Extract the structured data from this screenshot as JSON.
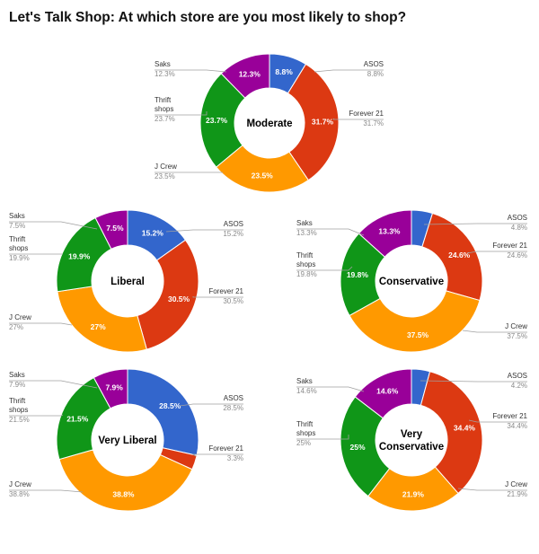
{
  "title": "Let's Talk Shop: At which store are you most likely to shop?",
  "colors": {
    "ASOS": "#3366cc",
    "Forever 21": "#dc3912",
    "J Crew": "#ff9900",
    "Thrift shops": "#109618",
    "Saks": "#990099"
  },
  "chart_data": [
    {
      "type": "pie",
      "donut": true,
      "center_label": "Moderate",
      "center_lines": [
        "Moderate"
      ],
      "slices": [
        {
          "name": "ASOS",
          "value": 8.8,
          "label": "8.8%"
        },
        {
          "name": "Forever 21",
          "value": 31.7,
          "label": "31.7%"
        },
        {
          "name": "J Crew",
          "value": 23.5,
          "label": "23.5%"
        },
        {
          "name": "Thrift shops",
          "value": 23.7,
          "label": "23.7%"
        },
        {
          "name": "Saks",
          "value": 12.3,
          "label": "12.3%"
        }
      ],
      "legend": [
        {
          "name": "ASOS",
          "value": "8.8%"
        },
        {
          "name": "Forever 21",
          "value": "31.7%"
        },
        {
          "name": "J Crew",
          "value": "23.5%"
        },
        {
          "name": "Thrift shops",
          "value": "23.7%"
        },
        {
          "name": "Saks",
          "value": "12.3%"
        }
      ]
    },
    {
      "type": "pie",
      "donut": true,
      "center_label": "Liberal",
      "center_lines": [
        "Liberal"
      ],
      "slices": [
        {
          "name": "ASOS",
          "value": 15.2,
          "label": "15.2%"
        },
        {
          "name": "Forever 21",
          "value": 30.5,
          "label": "30.5%"
        },
        {
          "name": "J Crew",
          "value": 27,
          "label": "27%"
        },
        {
          "name": "Thrift shops",
          "value": 19.9,
          "label": "19.9%"
        },
        {
          "name": "Saks",
          "value": 7.5,
          "label": "7.5%"
        }
      ],
      "legend": [
        {
          "name": "ASOS",
          "value": "15.2%"
        },
        {
          "name": "Forever 21",
          "value": "30.5%"
        },
        {
          "name": "J Crew",
          "value": "27%"
        },
        {
          "name": "Thrift shops",
          "value": "19.9%"
        },
        {
          "name": "Saks",
          "value": "7.5%"
        }
      ]
    },
    {
      "type": "pie",
      "donut": true,
      "center_label": "Conservative",
      "center_lines": [
        "Conservative"
      ],
      "slices": [
        {
          "name": "ASOS",
          "value": 4.8,
          "label": ""
        },
        {
          "name": "Forever 21",
          "value": 24.6,
          "label": "24.6%"
        },
        {
          "name": "J Crew",
          "value": 37.5,
          "label": "37.5%"
        },
        {
          "name": "Thrift shops",
          "value": 19.8,
          "label": "19.8%"
        },
        {
          "name": "Saks",
          "value": 13.3,
          "label": "13.3%"
        }
      ],
      "legend": [
        {
          "name": "ASOS",
          "value": "4.8%"
        },
        {
          "name": "Forever 21",
          "value": "24.6%"
        },
        {
          "name": "J Crew",
          "value": "37.5%"
        },
        {
          "name": "Thrift shops",
          "value": "19.8%"
        },
        {
          "name": "Saks",
          "value": "13.3%"
        }
      ]
    },
    {
      "type": "pie",
      "donut": true,
      "center_label": "Very Liberal",
      "center_lines": [
        "Very Liberal"
      ],
      "slices": [
        {
          "name": "ASOS",
          "value": 28.5,
          "label": "28.5%"
        },
        {
          "name": "Forever 21",
          "value": 3.3,
          "label": ""
        },
        {
          "name": "J Crew",
          "value": 38.8,
          "label": "38.8%"
        },
        {
          "name": "Thrift shops",
          "value": 21.5,
          "label": "21.5%"
        },
        {
          "name": "Saks",
          "value": 7.9,
          "label": "7.9%"
        }
      ],
      "legend": [
        {
          "name": "ASOS",
          "value": "28.5%"
        },
        {
          "name": "Forever 21",
          "value": "3.3%"
        },
        {
          "name": "J Crew",
          "value": "38.8%"
        },
        {
          "name": "Thrift shops",
          "value": "21.5%"
        },
        {
          "name": "Saks",
          "value": "7.9%"
        }
      ]
    },
    {
      "type": "pie",
      "donut": true,
      "center_label": "Very Conservative",
      "center_lines": [
        "Very",
        "Conservative"
      ],
      "slices": [
        {
          "name": "ASOS",
          "value": 4.2,
          "label": ""
        },
        {
          "name": "Forever 21",
          "value": 34.4,
          "label": "34.4%"
        },
        {
          "name": "J Crew",
          "value": 21.9,
          "label": "21.9%"
        },
        {
          "name": "Thrift shops",
          "value": 25,
          "label": "25%"
        },
        {
          "name": "Saks",
          "value": 14.6,
          "label": "14.6%"
        }
      ],
      "legend": [
        {
          "name": "ASOS",
          "value": "4.2%"
        },
        {
          "name": "Forever 21",
          "value": "34.4%"
        },
        {
          "name": "J Crew",
          "value": "21.9%"
        },
        {
          "name": "Thrift shops",
          "value": "25%"
        },
        {
          "name": "Saks",
          "value": "14.6%"
        }
      ]
    }
  ]
}
